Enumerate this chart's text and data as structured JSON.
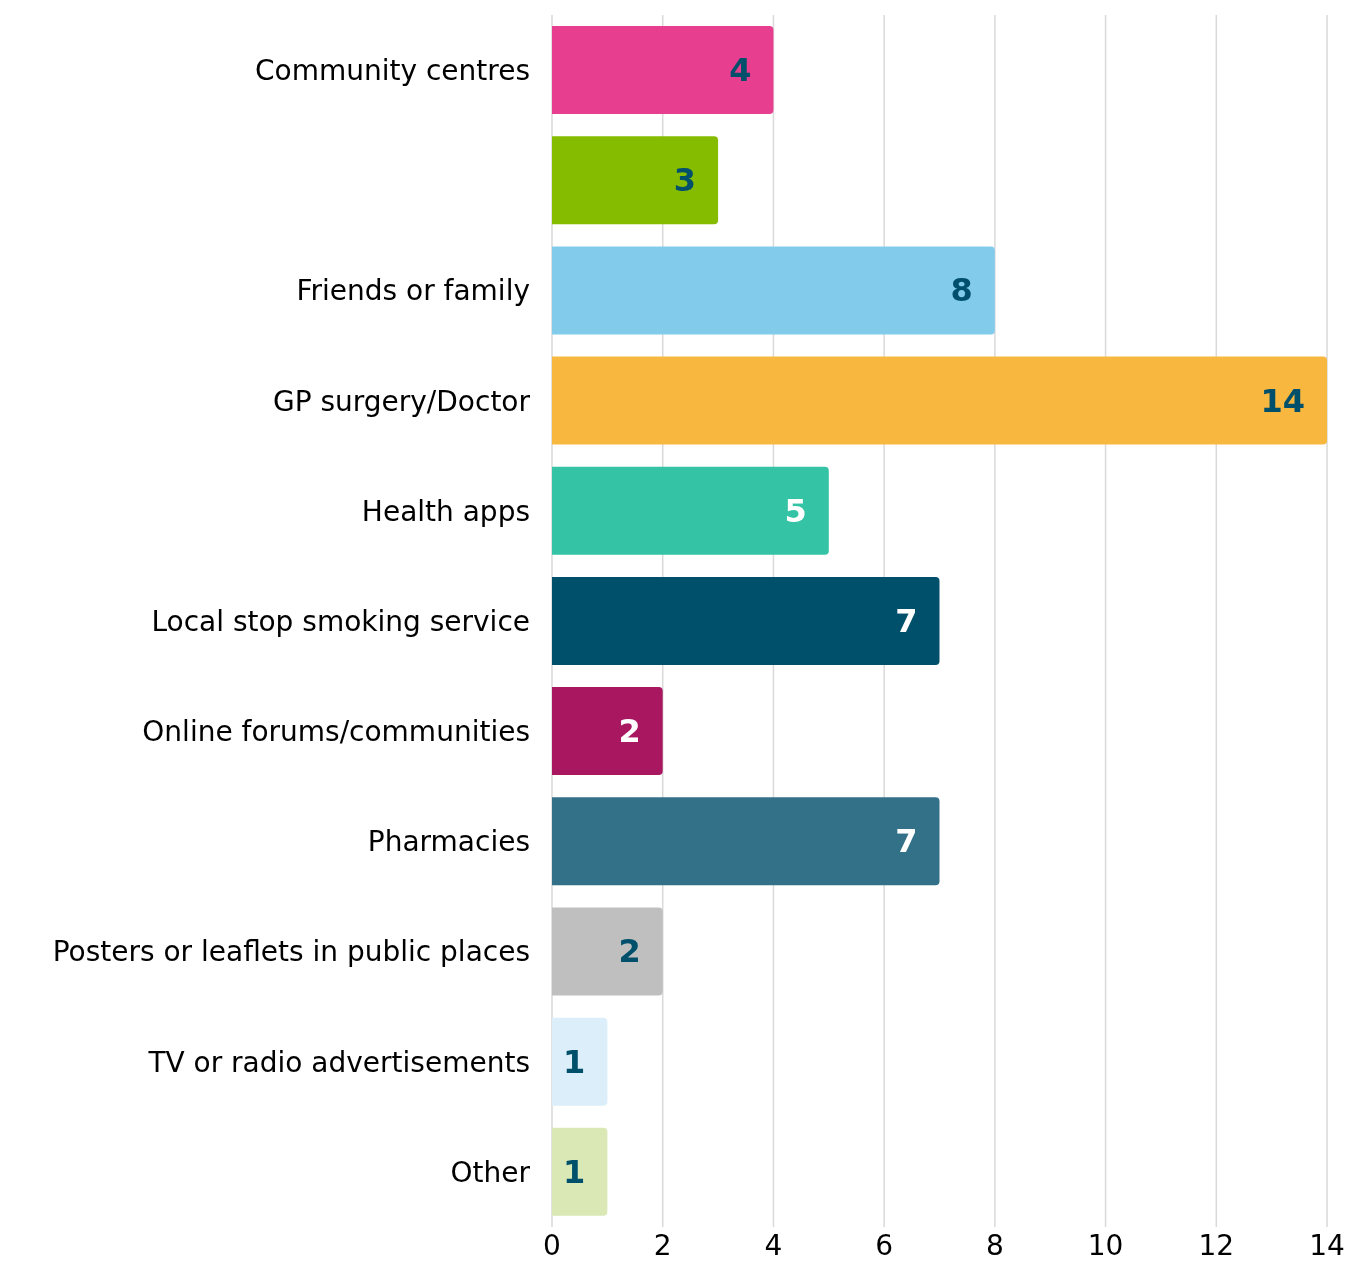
{
  "chart_data": {
    "type": "bar",
    "orientation": "horizontal",
    "categories": [
      "Community centres",
      null,
      "Friends or family",
      "GP surgery/Doctor",
      "Health apps",
      "Local stop smoking service",
      "Online forums/communities",
      "Pharmacies",
      "Posters or leaflets in public places",
      "TV or radio advertisements",
      "Other"
    ],
    "values": [
      4,
      3,
      8,
      14,
      5,
      7,
      2,
      7,
      2,
      1,
      1
    ],
    "colors": [
      "#e83e8f",
      "#86bc00",
      "#83cbeb",
      "#f8b73e",
      "#34c3a5",
      "#00506b",
      "#a8175f",
      "#337189",
      "#bfbfbf",
      "#dbeef9",
      "#dae8b5"
    ],
    "xlim": [
      0,
      14
    ],
    "xticks": [
      0,
      2,
      4,
      6,
      8,
      10,
      12,
      14
    ],
    "grid": "x",
    "data_labels": true
  }
}
